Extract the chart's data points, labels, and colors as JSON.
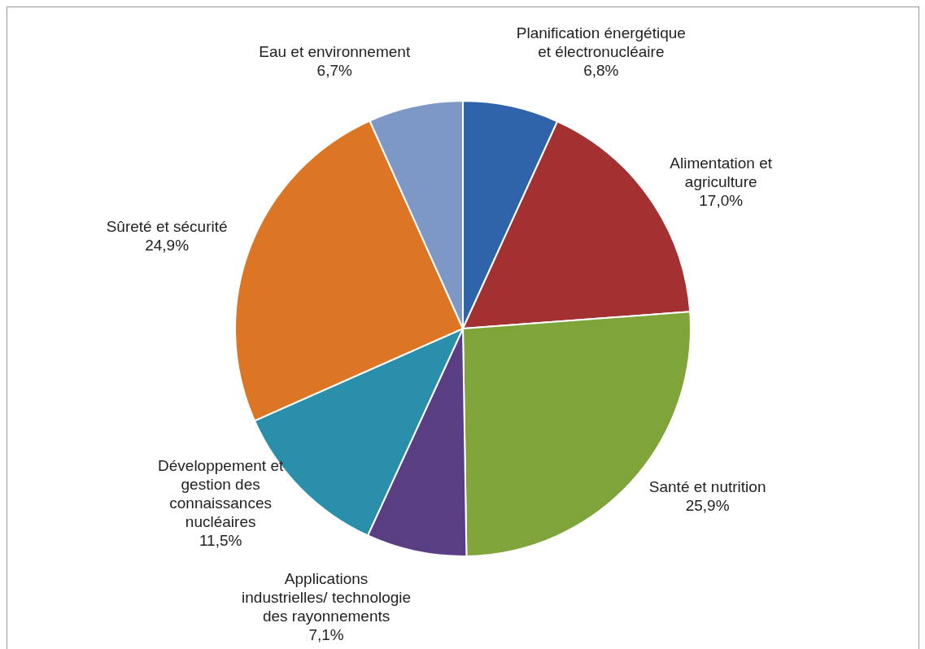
{
  "chart_data": {
    "type": "pie",
    "categories": [
      "Planification énergétique et électronucléaire",
      "Alimentation et agriculture",
      "Santé et nutrition",
      "Applications industrielles/ technologie des rayonnements",
      "Développement et gestion des connaissances nucléaires",
      "Sûreté et sécurité",
      "Eau et environnement"
    ],
    "values": [
      6.8,
      17.0,
      25.9,
      7.1,
      11.5,
      24.9,
      6.7
    ],
    "value_labels": [
      "6,8%",
      "17,0%",
      "25,9%",
      "7,1%",
      "11,5%",
      "24,9%",
      "6,7%"
    ],
    "colors": [
      "#2f64aa",
      "#a33131",
      "#7fa53a",
      "#5a3e84",
      "#2a8fab",
      "#dc7624",
      "#7e98c6"
    ],
    "legend": false
  }
}
